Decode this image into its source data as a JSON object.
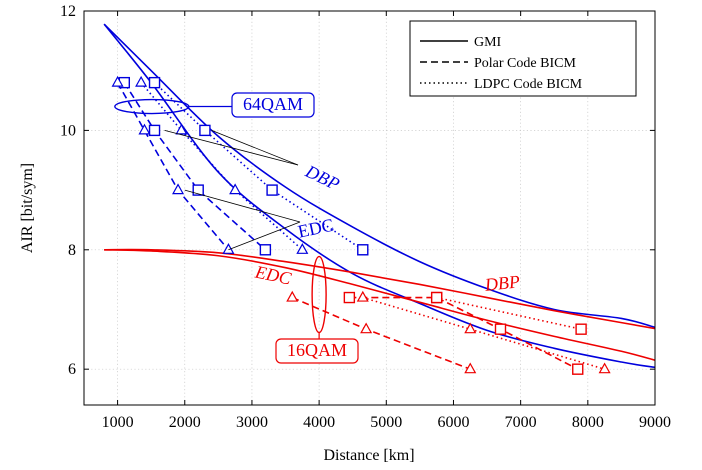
{
  "chart_data": {
    "type": "line",
    "xlabel": "Distance [km]",
    "ylabel": "AIR [bit/sym]",
    "xlim": [
      500,
      9000
    ],
    "ylim": [
      5.4,
      12
    ],
    "xticks": [
      1000,
      2000,
      3000,
      4000,
      5000,
      6000,
      7000,
      8000,
      9000
    ],
    "yticks": [
      6,
      8,
      10,
      12
    ],
    "grid": true,
    "legend_position": "top-right",
    "legend": [
      {
        "label": "GMI",
        "style": "solid"
      },
      {
        "label": "Polar Code BICM",
        "style": "dashed"
      },
      {
        "label": "LDPC Code BICM",
        "style": "dotted"
      }
    ],
    "colors": {
      "qam64": "#0000dd",
      "qam16": "#ee0000"
    },
    "series": [
      {
        "group": "64QAM",
        "method": "DBP",
        "kind": "GMI",
        "marker": "none",
        "x": [
          800,
          1500,
          2500,
          3500,
          4500,
          5500,
          6500,
          7500,
          8500,
          9000
        ],
        "y": [
          11.78,
          11.0,
          9.9,
          9.05,
          8.38,
          7.8,
          7.35,
          7.0,
          6.85,
          6.7
        ]
      },
      {
        "group": "64QAM",
        "method": "EDC",
        "kind": "GMI",
        "marker": "none",
        "x": [
          800,
          1500,
          2500,
          3500,
          4500,
          5500,
          6500,
          7500,
          8500,
          9000
        ],
        "y": [
          11.78,
          10.8,
          9.3,
          8.35,
          7.6,
          7.1,
          6.65,
          6.35,
          6.12,
          6.03
        ]
      },
      {
        "group": "64QAM",
        "method": "DBP",
        "kind": "Polar Code BICM",
        "marker": "square",
        "x": [
          1100,
          1550,
          2200,
          3200
        ],
        "y": [
          10.8,
          10.0,
          9.0,
          8.0
        ]
      },
      {
        "group": "64QAM",
        "method": "EDC",
        "kind": "Polar Code BICM",
        "marker": "triangle",
        "x": [
          1000,
          1400,
          1900,
          2650
        ],
        "y": [
          10.8,
          10.0,
          9.0,
          8.0
        ]
      },
      {
        "group": "64QAM",
        "method": "DBP",
        "kind": "LDPC Code BICM",
        "marker": "square",
        "x": [
          1550,
          2300,
          3300,
          4650
        ],
        "y": [
          10.8,
          10.0,
          9.0,
          8.0
        ]
      },
      {
        "group": "64QAM",
        "method": "EDC",
        "kind": "LDPC Code BICM",
        "marker": "triangle",
        "x": [
          1350,
          1950,
          2750,
          3750
        ],
        "y": [
          10.8,
          10.0,
          9.0,
          8.0
        ]
      },
      {
        "group": "16QAM",
        "method": "DBP",
        "kind": "GMI",
        "marker": "none",
        "x": [
          800,
          1500,
          2500,
          3500,
          4500,
          5500,
          6500,
          7500,
          8500,
          9000
        ],
        "y": [
          8.0,
          8.0,
          7.95,
          7.8,
          7.62,
          7.42,
          7.2,
          6.98,
          6.78,
          6.68
        ]
      },
      {
        "group": "16QAM",
        "method": "EDC",
        "kind": "GMI",
        "marker": "none",
        "x": [
          800,
          1500,
          2500,
          3500,
          4500,
          5500,
          6500,
          7500,
          8500,
          9000
        ],
        "y": [
          8.0,
          7.98,
          7.9,
          7.7,
          7.42,
          7.12,
          6.82,
          6.55,
          6.3,
          6.15
        ]
      },
      {
        "group": "16QAM",
        "method": "DBP",
        "kind": "Polar Code BICM",
        "marker": "square",
        "x": [
          4450,
          5750,
          6700,
          7850
        ],
        "y": [
          7.2,
          7.2,
          6.67,
          6.0
        ]
      },
      {
        "group": "16QAM",
        "method": "EDC",
        "kind": "Polar Code BICM",
        "marker": "triangle",
        "x": [
          3600,
          4700,
          6250
        ],
        "y": [
          7.2,
          6.67,
          6.0
        ]
      },
      {
        "group": "16QAM",
        "method": "DBP",
        "kind": "LDPC Code BICM",
        "marker": "square",
        "x": [
          5750,
          7900
        ],
        "y": [
          7.2,
          6.67
        ]
      },
      {
        "group": "16QAM",
        "method": "EDC",
        "kind": "LDPC Code BICM",
        "marker": "triangle",
        "x": [
          4650,
          6250,
          8250
        ],
        "y": [
          7.2,
          6.67,
          6.0
        ]
      }
    ],
    "annotations": {
      "qam64_label": "64QAM",
      "qam16_label": "16QAM",
      "dbp_blue": "DBP",
      "edc_blue": "EDC",
      "edc_red": "EDC",
      "dbp_red": "DBP"
    }
  }
}
